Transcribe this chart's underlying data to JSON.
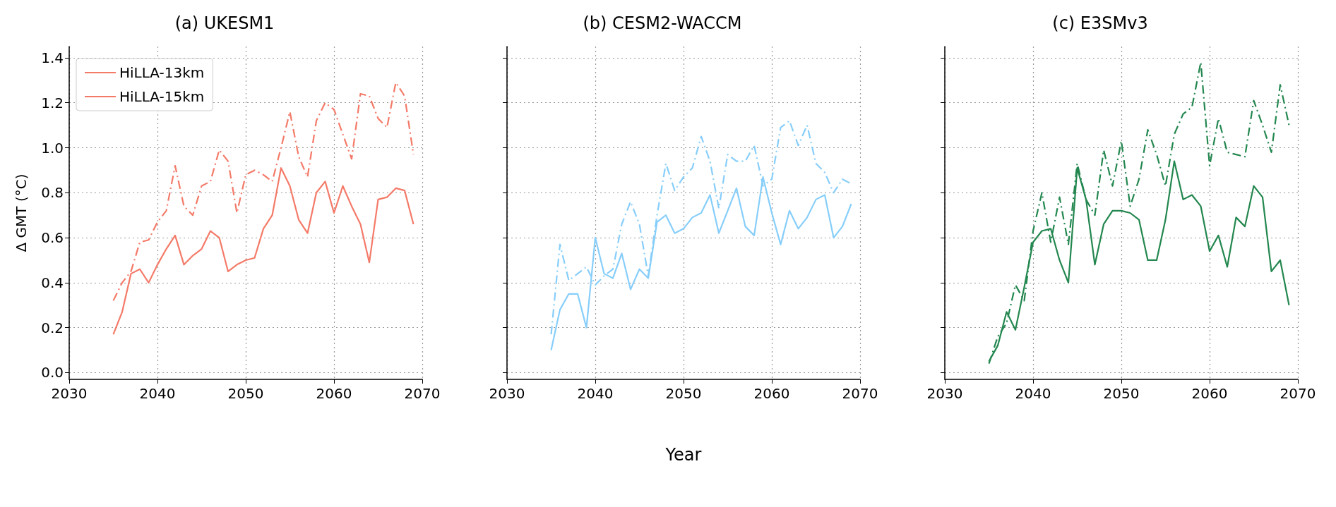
{
  "chart_data": [
    {
      "type": "line",
      "title": "(a) UKESM1",
      "ylabel": "Δ GMT (°C)",
      "x": [
        2035,
        2036,
        2037,
        2038,
        2039,
        2040,
        2041,
        2042,
        2043,
        2044,
        2045,
        2046,
        2047,
        2048,
        2049,
        2050,
        2051,
        2052,
        2053,
        2054,
        2055,
        2056,
        2057,
        2058,
        2059,
        2060,
        2061,
        2062,
        2063,
        2064,
        2065,
        2066,
        2067,
        2068,
        2069
      ],
      "xlim": [
        2030,
        2070
      ],
      "xticks": [
        2030,
        2040,
        2050,
        2060,
        2070
      ],
      "ylim": [
        -0.03,
        1.45
      ],
      "yticks": [
        {
          "value": 0,
          "label": "0.0"
        },
        {
          "value": 0.2,
          "label": "0.2"
        },
        {
          "value": 0.4,
          "label": "0.4"
        },
        {
          "value": 0.6,
          "label": "0.6"
        },
        {
          "value": 0.8,
          "label": "0.8"
        },
        {
          "value": 1.0,
          "label": "1.0"
        },
        {
          "value": 1.2,
          "label": "1.2"
        },
        {
          "value": 1.4,
          "label": "1.4"
        }
      ],
      "grid": true,
      "legend": "top left",
      "series": [
        {
          "name": "HiLLA-13km",
          "color": "#f47a68",
          "line_style": "solid",
          "values": [
            0.17,
            0.27,
            0.44,
            0.46,
            0.4,
            0.48,
            0.55,
            0.61,
            0.48,
            0.52,
            0.55,
            0.63,
            0.6,
            0.45,
            0.48,
            0.5,
            0.51,
            0.64,
            0.7,
            0.91,
            0.83,
            0.68,
            0.62,
            0.8,
            0.85,
            0.71,
            0.83,
            0.74,
            0.66,
            0.49,
            0.77,
            0.78,
            0.82,
            0.81,
            0.66
          ]
        },
        {
          "name": "HiLLA-15km",
          "color": "#f47a68",
          "line_style": "dashdot",
          "values": [
            0.32,
            0.4,
            0.45,
            0.58,
            0.59,
            0.67,
            0.72,
            0.92,
            0.74,
            0.7,
            0.83,
            0.85,
            0.99,
            0.94,
            0.71,
            0.88,
            0.9,
            0.88,
            0.85,
            1.0,
            1.16,
            0.96,
            0.87,
            1.12,
            1.2,
            1.17,
            1.06,
            0.95,
            1.24,
            1.23,
            1.13,
            1.09,
            1.29,
            1.23,
            0.97
          ]
        }
      ]
    },
    {
      "type": "line",
      "title": "(b) CESM2-WACCM",
      "xlabel": "Year",
      "x": [
        2035,
        2036,
        2037,
        2038,
        2039,
        2040,
        2041,
        2042,
        2043,
        2044,
        2045,
        2046,
        2047,
        2048,
        2049,
        2050,
        2051,
        2052,
        2053,
        2054,
        2055,
        2056,
        2057,
        2058,
        2059,
        2060,
        2061,
        2062,
        2063,
        2064,
        2065,
        2066,
        2067,
        2068,
        2069
      ],
      "xlim": [
        2030,
        2070
      ],
      "xticks": [
        2030,
        2040,
        2050,
        2060,
        2070
      ],
      "ylim": [
        -0.03,
        1.45
      ],
      "yticks": [
        {
          "value": 0,
          "label": null
        },
        {
          "value": 0.2,
          "label": null
        },
        {
          "value": 0.4,
          "label": null
        },
        {
          "value": 0.6,
          "label": null
        },
        {
          "value": 0.8,
          "label": null
        },
        {
          "value": 1.0,
          "label": null
        },
        {
          "value": 1.2,
          "label": null
        },
        {
          "value": 1.4,
          "label": null
        }
      ],
      "grid": true,
      "tick_labels": "x",
      "series": [
        {
          "color": "#87cefa",
          "line_style": "solid",
          "values": [
            0.1,
            0.28,
            0.35,
            0.35,
            0.2,
            0.6,
            0.44,
            0.42,
            0.53,
            0.37,
            0.46,
            0.42,
            0.67,
            0.7,
            0.62,
            0.64,
            0.69,
            0.71,
            0.79,
            0.62,
            0.72,
            0.82,
            0.65,
            0.61,
            0.87,
            0.71,
            0.57,
            0.72,
            0.64,
            0.69,
            0.77,
            0.79,
            0.6,
            0.65,
            0.75
          ]
        },
        {
          "color": "#87cefa",
          "line_style": "dashdot",
          "values": [
            0.17,
            0.57,
            0.41,
            0.44,
            0.47,
            0.39,
            0.43,
            0.46,
            0.66,
            0.76,
            0.66,
            0.43,
            0.7,
            0.93,
            0.81,
            0.87,
            0.91,
            1.05,
            0.94,
            0.73,
            0.97,
            0.94,
            0.94,
            1.01,
            0.83,
            0.86,
            1.09,
            1.12,
            1.01,
            1.1,
            0.93,
            0.89,
            0.8,
            0.86,
            0.84
          ]
        }
      ]
    },
    {
      "type": "line",
      "title": "(c) E3SMv3",
      "x": [
        2035,
        2036,
        2037,
        2038,
        2039,
        2040,
        2041,
        2042,
        2043,
        2044,
        2045,
        2046,
        2047,
        2048,
        2049,
        2050,
        2051,
        2052,
        2053,
        2054,
        2055,
        2056,
        2057,
        2058,
        2059,
        2060,
        2061,
        2062,
        2063,
        2064,
        2065,
        2066,
        2067,
        2068,
        2069
      ],
      "xlim": [
        2030,
        2070
      ],
      "xticks": [
        2030,
        2040,
        2050,
        2060,
        2070
      ],
      "ylim": [
        -0.03,
        1.45
      ],
      "yticks": [
        {
          "value": 0,
          "label": null
        },
        {
          "value": 0.2,
          "label": null
        },
        {
          "value": 0.4,
          "label": null
        },
        {
          "value": 0.6,
          "label": null
        },
        {
          "value": 0.8,
          "label": null
        },
        {
          "value": 1.0,
          "label": null
        },
        {
          "value": 1.2,
          "label": null
        },
        {
          "value": 1.4,
          "label": null
        }
      ],
      "grid": true,
      "tick_labels": "x",
      "series": [
        {
          "color": "#23874f",
          "line_style": "solid",
          "values": [
            0.05,
            0.12,
            0.27,
            0.19,
            0.38,
            0.58,
            0.63,
            0.64,
            0.5,
            0.4,
            0.91,
            0.77,
            0.48,
            0.66,
            0.72,
            0.72,
            0.71,
            0.68,
            0.5,
            0.5,
            0.68,
            0.94,
            0.77,
            0.79,
            0.74,
            0.54,
            0.61,
            0.47,
            0.69,
            0.65,
            0.83,
            0.78,
            0.45,
            0.5,
            0.3
          ]
        },
        {
          "color": "#23874f",
          "line_style": "dashdot",
          "values": [
            0.04,
            0.16,
            0.22,
            0.39,
            0.32,
            0.63,
            0.8,
            0.58,
            0.78,
            0.57,
            0.93,
            0.77,
            0.7,
            0.99,
            0.83,
            1.03,
            0.74,
            0.86,
            1.08,
            0.97,
            0.83,
            1.06,
            1.15,
            1.18,
            1.38,
            0.92,
            1.13,
            0.98,
            0.97,
            0.96,
            1.21,
            1.1,
            0.98,
            1.28,
            1.1
          ]
        }
      ]
    }
  ]
}
